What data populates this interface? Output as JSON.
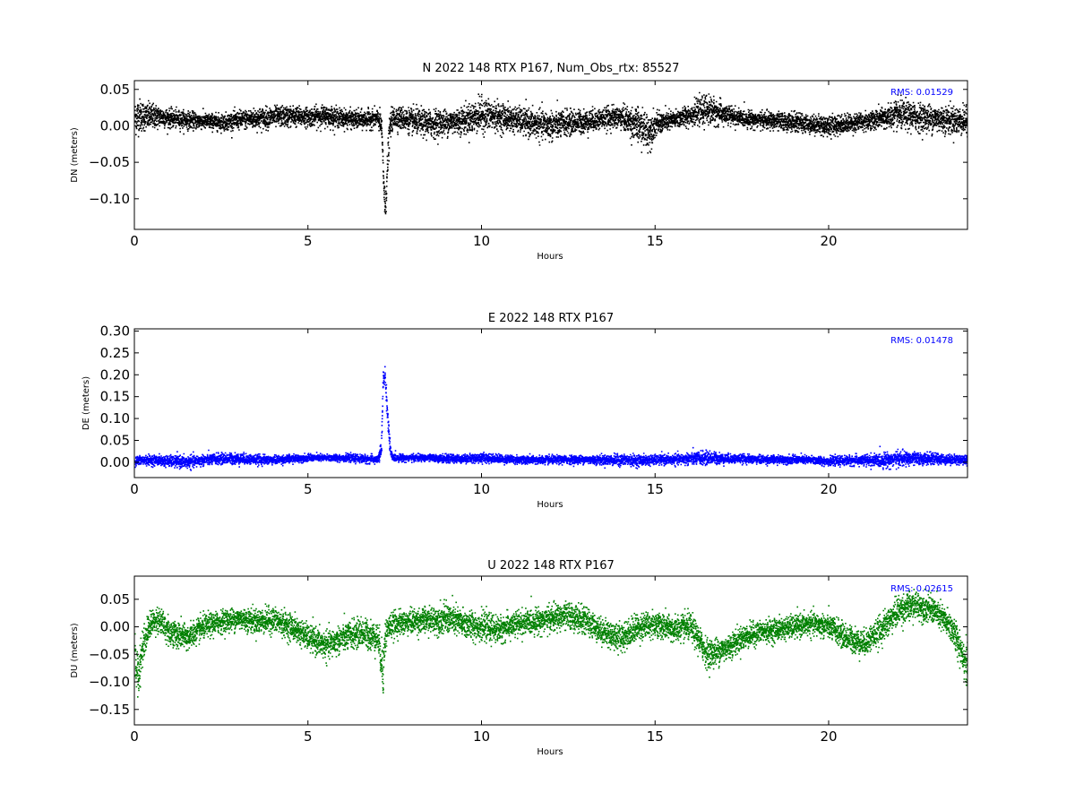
{
  "chart_data": [
    {
      "type": "scatter",
      "title": "N 2022 148 RTX  P167, Num_Obs_rtx: 85527",
      "xlabel": "Hours",
      "ylabel": "DN (meters)",
      "rms_label": "RMS:  0.01529",
      "color": "#000000",
      "xlim": [
        0,
        24
      ],
      "ylim": [
        -0.142,
        0.062
      ],
      "xticks": [
        0,
        5,
        10,
        15,
        20
      ],
      "xtick_labels": [
        "0",
        "5",
        "10",
        "15",
        "20"
      ],
      "yticks": [
        0.05,
        0.0,
        -0.05,
        -0.1
      ],
      "ytick_labels": [
        "0.05",
        "0.00",
        "−0.05",
        "−0.10"
      ],
      "series": [
        {
          "x": [
            0.0,
            0.1,
            0.3,
            0.5,
            0.8,
            1.0,
            1.5,
            2.0,
            2.5,
            3.0,
            3.5,
            4.0,
            4.5,
            5.0,
            5.5,
            6.0,
            6.5,
            7.0,
            7.1,
            7.15,
            7.2,
            7.25,
            7.3,
            7.35,
            7.4,
            7.5,
            7.7,
            8.0,
            8.5,
            9.0,
            9.5,
            10.0,
            10.5,
            11.0,
            11.5,
            12.0,
            12.5,
            13.0,
            13.5,
            14.0,
            14.5,
            14.8,
            15.0,
            15.5,
            16.0,
            16.5,
            17.0,
            17.5,
            18.0,
            18.5,
            19.0,
            19.5,
            20.0,
            20.5,
            21.0,
            21.5,
            22.0,
            22.5,
            23.0,
            23.5,
            24.0
          ],
          "center": [
            0.01,
            0.015,
            0.012,
            0.013,
            0.012,
            0.01,
            0.008,
            0.006,
            0.005,
            0.008,
            0.01,
            0.012,
            0.013,
            0.012,
            0.014,
            0.01,
            0.008,
            0.01,
            0.0,
            -0.06,
            -0.115,
            -0.08,
            -0.03,
            0.0,
            0.008,
            0.012,
            0.01,
            0.006,
            0.003,
            0.005,
            0.008,
            0.015,
            0.012,
            0.008,
            0.002,
            0.0,
            0.004,
            0.006,
            0.01,
            0.012,
            0.0,
            -0.008,
            0.002,
            0.008,
            0.015,
            0.022,
            0.015,
            0.01,
            0.008,
            0.006,
            0.005,
            0.002,
            0.0,
            0.003,
            0.006,
            0.01,
            0.015,
            0.012,
            0.01,
            0.008,
            0.006
          ],
          "spread": [
            0.03,
            0.03,
            0.024,
            0.022,
            0.018,
            0.016,
            0.015,
            0.014,
            0.014,
            0.016,
            0.018,
            0.018,
            0.018,
            0.016,
            0.018,
            0.016,
            0.016,
            0.016,
            0.02,
            0.03,
            0.03,
            0.03,
            0.03,
            0.022,
            0.02,
            0.02,
            0.02,
            0.022,
            0.024,
            0.022,
            0.024,
            0.03,
            0.024,
            0.022,
            0.024,
            0.026,
            0.022,
            0.02,
            0.018,
            0.02,
            0.03,
            0.034,
            0.02,
            0.016,
            0.018,
            0.026,
            0.018,
            0.014,
            0.014,
            0.016,
            0.016,
            0.016,
            0.018,
            0.016,
            0.016,
            0.018,
            0.026,
            0.024,
            0.024,
            0.024,
            0.024
          ]
        }
      ]
    },
    {
      "type": "scatter",
      "title": "E 2022 148 RTX  P167",
      "xlabel": "Hours",
      "ylabel": "DE (meters)",
      "rms_label": "RMS:  0.01478",
      "color": "#0000ff",
      "xlim": [
        0,
        24
      ],
      "ylim": [
        -0.035,
        0.305
      ],
      "xticks": [
        0,
        5,
        10,
        15,
        20
      ],
      "xtick_labels": [
        "0",
        "5",
        "10",
        "15",
        "20"
      ],
      "yticks": [
        0.3,
        0.25,
        0.2,
        0.15,
        0.1,
        0.05,
        0.0
      ],
      "ytick_labels": [
        "0.30",
        "0.25",
        "0.20",
        "0.15",
        "0.10",
        "0.05",
        "0.00"
      ],
      "series": [
        {
          "x": [
            0.0,
            0.5,
            1.0,
            1.5,
            2.0,
            2.5,
            3.0,
            3.5,
            4.0,
            4.5,
            5.0,
            5.5,
            6.0,
            6.5,
            7.0,
            7.1,
            7.15,
            7.2,
            7.25,
            7.3,
            7.35,
            7.4,
            7.5,
            8.0,
            8.5,
            9.0,
            9.5,
            10.0,
            10.5,
            11.0,
            11.5,
            12.0,
            12.5,
            13.0,
            13.5,
            14.0,
            14.5,
            15.0,
            15.5,
            16.0,
            16.5,
            17.0,
            17.5,
            18.0,
            18.5,
            19.0,
            19.5,
            20.0,
            20.5,
            21.0,
            21.5,
            22.0,
            22.5,
            23.0,
            23.5,
            24.0
          ],
          "center": [
            0.003,
            0.005,
            0.002,
            0.0,
            0.005,
            0.008,
            0.008,
            0.006,
            0.005,
            0.008,
            0.01,
            0.01,
            0.01,
            0.008,
            0.006,
            0.03,
            0.19,
            0.2,
            0.14,
            0.08,
            0.03,
            0.012,
            0.01,
            0.01,
            0.01,
            0.008,
            0.008,
            0.01,
            0.008,
            0.006,
            0.005,
            0.005,
            0.006,
            0.006,
            0.005,
            0.005,
            0.004,
            0.005,
            0.006,
            0.008,
            0.01,
            0.008,
            0.008,
            0.006,
            0.006,
            0.006,
            0.005,
            0.002,
            0.004,
            0.004,
            0.004,
            0.008,
            0.008,
            0.008,
            0.006,
            0.006
          ],
          "spread": [
            0.014,
            0.014,
            0.016,
            0.018,
            0.016,
            0.016,
            0.016,
            0.014,
            0.012,
            0.012,
            0.01,
            0.01,
            0.01,
            0.012,
            0.012,
            0.03,
            0.03,
            0.03,
            0.026,
            0.03,
            0.022,
            0.012,
            0.01,
            0.01,
            0.01,
            0.012,
            0.012,
            0.014,
            0.012,
            0.012,
            0.012,
            0.012,
            0.012,
            0.012,
            0.014,
            0.016,
            0.016,
            0.014,
            0.014,
            0.018,
            0.02,
            0.014,
            0.012,
            0.012,
            0.012,
            0.012,
            0.012,
            0.012,
            0.014,
            0.016,
            0.02,
            0.022,
            0.018,
            0.016,
            0.014,
            0.014
          ]
        }
      ]
    },
    {
      "type": "scatter",
      "title": "U 2022 148 RTX  P167",
      "xlabel": "Hours",
      "ylabel": "DU (meters)",
      "rms_label": "RMS:  0.02615",
      "color": "#008000",
      "xlim": [
        0,
        24
      ],
      "ylim": [
        -0.178,
        0.092
      ],
      "xticks": [
        0,
        5,
        10,
        15,
        20
      ],
      "xtick_labels": [
        "0",
        "5",
        "10",
        "15",
        "20"
      ],
      "yticks": [
        0.05,
        0.0,
        -0.05,
        -0.1,
        -0.15
      ],
      "ytick_labels": [
        "0.05",
        "0.00",
        "−0.05",
        "−0.10",
        "−0.15"
      ],
      "series": [
        {
          "x": [
            0.0,
            0.1,
            0.2,
            0.4,
            0.6,
            0.8,
            1.0,
            1.5,
            2.0,
            2.5,
            3.0,
            3.5,
            4.0,
            4.5,
            5.0,
            5.5,
            6.0,
            6.5,
            7.0,
            7.15,
            7.2,
            7.3,
            7.5,
            8.0,
            8.5,
            9.0,
            9.5,
            10.0,
            10.5,
            11.0,
            11.5,
            12.0,
            12.5,
            13.0,
            13.5,
            14.0,
            14.5,
            15.0,
            15.5,
            16.0,
            16.5,
            17.0,
            17.5,
            18.0,
            18.5,
            19.0,
            19.5,
            20.0,
            20.5,
            21.0,
            21.5,
            22.0,
            22.5,
            23.0,
            23.5,
            23.8,
            24.0
          ],
          "center": [
            -0.06,
            -0.09,
            -0.04,
            0.0,
            0.015,
            0.005,
            -0.01,
            -0.02,
            0.0,
            0.01,
            0.015,
            0.01,
            0.012,
            0.0,
            -0.02,
            -0.035,
            -0.02,
            -0.01,
            -0.02,
            -0.08,
            -0.02,
            0.0,
            0.005,
            0.01,
            0.012,
            0.015,
            0.005,
            0.0,
            -0.005,
            0.005,
            0.01,
            0.015,
            0.02,
            0.01,
            -0.01,
            -0.02,
            0.0,
            0.005,
            -0.005,
            0.0,
            -0.05,
            -0.04,
            -0.02,
            -0.01,
            -0.005,
            0.0,
            0.005,
            0.0,
            -0.02,
            -0.03,
            -0.005,
            0.03,
            0.04,
            0.03,
            0.0,
            -0.04,
            -0.08
          ],
          "spread": [
            0.05,
            0.05,
            0.045,
            0.03,
            0.03,
            0.032,
            0.032,
            0.03,
            0.028,
            0.026,
            0.026,
            0.028,
            0.03,
            0.03,
            0.03,
            0.032,
            0.032,
            0.034,
            0.034,
            0.06,
            0.04,
            0.03,
            0.028,
            0.028,
            0.03,
            0.036,
            0.034,
            0.032,
            0.03,
            0.03,
            0.028,
            0.03,
            0.032,
            0.03,
            0.03,
            0.032,
            0.032,
            0.03,
            0.03,
            0.032,
            0.034,
            0.03,
            0.028,
            0.026,
            0.026,
            0.026,
            0.026,
            0.028,
            0.03,
            0.03,
            0.032,
            0.034,
            0.032,
            0.032,
            0.034,
            0.04,
            0.05
          ]
        }
      ]
    }
  ]
}
